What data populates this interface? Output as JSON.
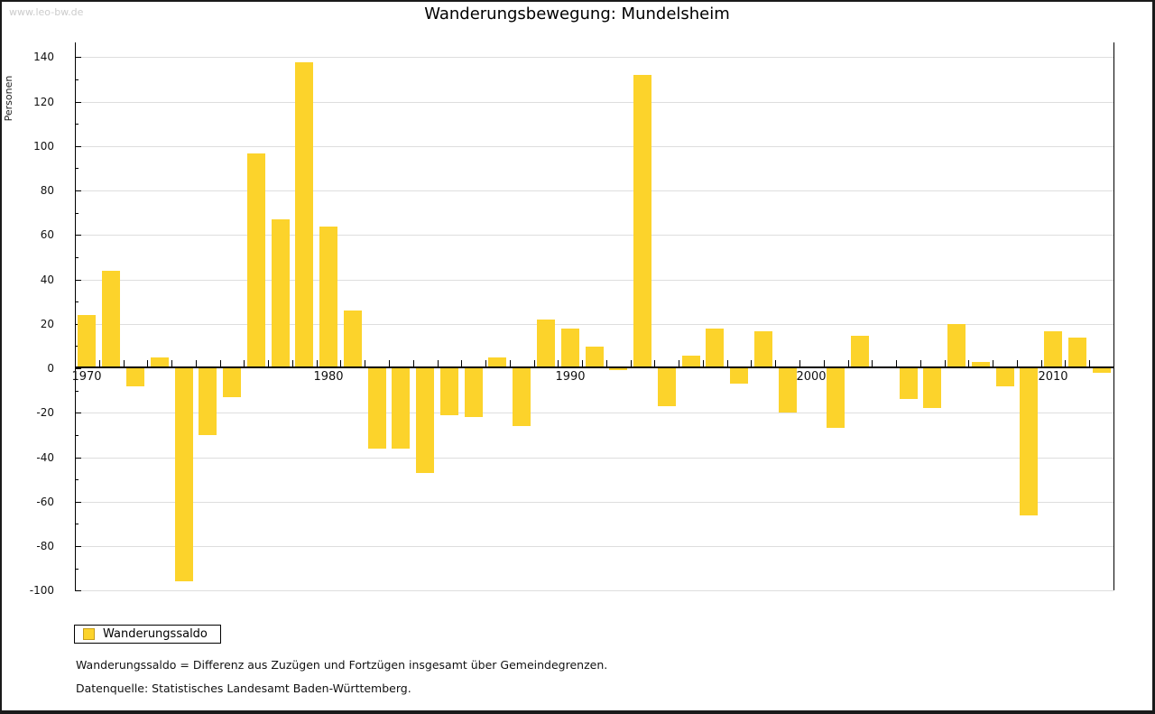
{
  "header": {
    "watermark": "www.leo-bw.de",
    "title": "Wanderungsbewegung: Mundelsheim"
  },
  "legend": {
    "label": "Wanderungssaldo"
  },
  "footnotes": [
    "Wanderungssaldo = Differenz aus Zuzügen und Fortzügen insgesamt über Gemeindegrenzen.",
    "Datenquelle: Statistisches Landesamt Baden-Württemberg."
  ],
  "colors": {
    "bar": "#fcd32b",
    "bar_chip_border": "#c79e1c",
    "grid": "#dedede",
    "axis": "#000000",
    "watermark": "#cccccc"
  },
  "chart_data": {
    "type": "bar",
    "title": "Wanderungsbewegung: Mundelsheim",
    "xlabel": "",
    "ylabel": "Personen",
    "legend_entries": [
      "Wanderungssaldo"
    ],
    "legend_position": "bottom-left",
    "grid": true,
    "ylim": [
      -100,
      140
    ],
    "ytick_step": 20,
    "ytick_labels": [
      140,
      120,
      100,
      80,
      60,
      40,
      20,
      0,
      -20,
      -40,
      -60,
      -80,
      -100
    ],
    "xtick_labels": [
      "1970",
      "1980",
      "1990",
      "2000",
      "2010"
    ],
    "x": [
      1970,
      1971,
      1972,
      1973,
      1974,
      1975,
      1976,
      1977,
      1978,
      1979,
      1980,
      1981,
      1982,
      1983,
      1984,
      1985,
      1986,
      1987,
      1988,
      1989,
      1990,
      1991,
      1992,
      1993,
      1994,
      1995,
      1996,
      1997,
      1998,
      1999,
      2000,
      2001,
      2002,
      2003,
      2004,
      2005,
      2006,
      2007,
      2008,
      2009,
      2010,
      2011,
      2012
    ],
    "series": [
      {
        "name": "Wanderungssaldo",
        "values": [
          23,
          43,
          -8,
          4,
          -96,
          -30,
          -13,
          96,
          66,
          137,
          63,
          25,
          -36,
          -36,
          -47,
          -21,
          -22,
          4,
          -26,
          21,
          17,
          9,
          -1,
          131,
          -17,
          5,
          17,
          -7,
          16,
          -20,
          0,
          -27,
          14,
          0,
          -14,
          -18,
          19,
          2,
          -8,
          -66,
          16,
          13,
          -2
        ]
      }
    ]
  }
}
